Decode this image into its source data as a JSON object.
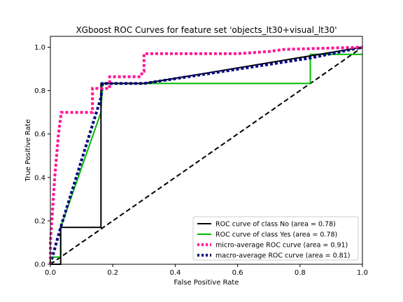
{
  "chart_data": {
    "type": "line",
    "title": "XGboost ROC Curves for feature set 'objects_lt30+visual_lt30'",
    "xlabel": "False Positive Rate",
    "ylabel": "True Positive Rate",
    "xlim": [
      0.0,
      1.0
    ],
    "ylim": [
      0.0,
      1.05
    ],
    "xticks": [
      "0.0",
      "0.2",
      "0.4",
      "0.6",
      "0.8",
      "1.0"
    ],
    "yticks": [
      "0.0",
      "0.2",
      "0.4",
      "0.6",
      "0.8",
      "1.0"
    ],
    "grid": false,
    "legend_position": "lower-right",
    "series": [
      {
        "name": "ROC curve of class No (area = 0.78)",
        "color": "#000000",
        "style": "solid",
        "x": [
          0.0,
          0.033,
          0.033,
          0.162,
          0.162,
          0.3,
          1.0
        ],
        "y": [
          0.0,
          0.0,
          0.17,
          0.17,
          0.833,
          0.833,
          1.0
        ]
      },
      {
        "name": "ROC curve of class Yes (area = 0.78)",
        "color": "#00bb00",
        "style": "solid",
        "x": [
          0.0,
          0.0,
          0.033,
          0.033,
          0.162,
          0.167,
          0.833,
          0.833,
          1.0
        ],
        "y": [
          0.0,
          0.033,
          0.033,
          0.17,
          0.7,
          0.833,
          0.833,
          0.967,
          0.967
        ]
      },
      {
        "name": "micro-average ROC curve (area = 0.91)",
        "color": "#ff1493",
        "style": "dotted",
        "x": [
          0.0,
          0.0,
          0.014,
          0.026,
          0.035,
          0.135,
          0.135,
          0.19,
          0.19,
          0.29,
          0.296,
          0.3,
          0.3,
          0.6,
          0.7,
          0.75,
          1.0
        ],
        "y": [
          0.0,
          0.1,
          0.4,
          0.6,
          0.7,
          0.7,
          0.81,
          0.81,
          0.864,
          0.864,
          0.89,
          0.89,
          0.97,
          0.97,
          0.98,
          0.99,
          1.0
        ]
      },
      {
        "name": "macro-average ROC curve (area = 0.81)",
        "color": "#000080",
        "style": "dotted",
        "x": [
          0.0,
          0.033,
          0.162,
          0.167,
          0.3,
          0.833,
          1.0
        ],
        "y": [
          0.0,
          0.17,
          0.767,
          0.833,
          0.833,
          0.95,
          1.0
        ]
      },
      {
        "name": "",
        "color": "#000000",
        "style": "dashed",
        "x": [
          0.0,
          1.0
        ],
        "y": [
          0.0,
          1.0
        ]
      }
    ]
  }
}
